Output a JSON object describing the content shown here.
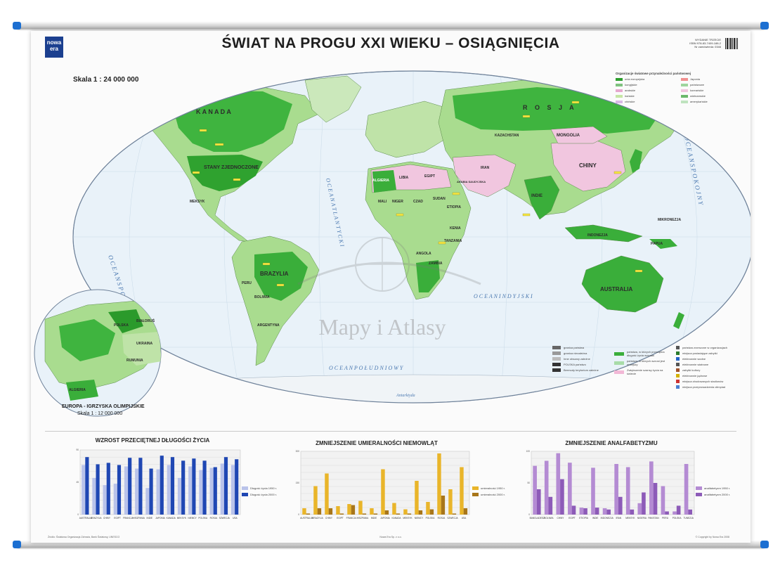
{
  "title": "ŚWIAT NA PROGU XXI WIEKU – OSIĄGNIĘCIA",
  "logo": {
    "line1": "nowa",
    "line2": "era"
  },
  "edition": {
    "line1": "WYDANIE TRZECIE",
    "line2": "ISBN 978-83-7409-188-2",
    "line3": "Nr zamówienia: 0346"
  },
  "map": {
    "scale_label": "Skala 1 : 24 000 000",
    "watermark": "Mapy i Atlasy",
    "ocean_labels": [
      "OCEAN ARKTYCZNY",
      "O C E A N   S P O K O J N Y",
      "O C E A N   A T L A N T Y C K I",
      "O C E A N   I N D Y J S K I",
      "O C E A N   P O Ł U D N I O W Y",
      "O C E A N   S P O K O J N Y",
      "Antarktyda"
    ],
    "countries": [
      {
        "name": "K A N A D A"
      },
      {
        "name": "STANY ZJEDNOCZONE"
      },
      {
        "name": "BRAZYLIA"
      },
      {
        "name": "R O S J A"
      },
      {
        "name": "CHINY"
      },
      {
        "name": "INDIE"
      },
      {
        "name": "AUSTRALIA"
      },
      {
        "name": "ALGIERIA"
      },
      {
        "name": "LIBIA"
      },
      {
        "name": "EGIPT"
      },
      {
        "name": "SUDAN"
      },
      {
        "name": "MALI"
      },
      {
        "name": "NIGER"
      },
      {
        "name": "CZAD"
      },
      {
        "name": "ETIOPIA"
      },
      {
        "name": "ANGOLA"
      },
      {
        "name": "ZAMBIA"
      },
      {
        "name": "KENIA"
      },
      {
        "name": "TANZANIA"
      },
      {
        "name": "MONGOLIA"
      },
      {
        "name": "IRAN"
      },
      {
        "name": "ARABIA SAUDYJSKA"
      },
      {
        "name": "KAZACHSTAN"
      },
      {
        "name": "PERU"
      },
      {
        "name": "BOLIWIA"
      },
      {
        "name": "ARGENTYNA"
      },
      {
        "name": "MEKSYK"
      },
      {
        "name": "INDONEZJA"
      },
      {
        "name": "PAPUA"
      },
      {
        "name": "MIKRONEZJA"
      }
    ]
  },
  "inset": {
    "caption": "EUROPA - IGRZYSKA OLIMPIJSKIE",
    "scale": "Skala 1 : 12 000 000",
    "labels": [
      "POLSKA",
      "BIAŁORUŚ",
      "UKRAINA",
      "ALGIERIA",
      "RUMUNIA"
    ]
  },
  "legend": {
    "heading": "Organizacje światowe przynależności państwowej",
    "items": [
      {
        "label": "unia europejska",
        "color": "#2e9e2e"
      },
      {
        "label": "Japonia",
        "color": "#f08f8f"
      },
      {
        "label": "kongijskie",
        "color": "#7fc27f"
      },
      {
        "label": "państwowe",
        "color": "#9ed69e"
      },
      {
        "label": "arabskie",
        "color": "#e7a8cf"
      },
      {
        "label": "koreańskie",
        "color": "#f1c6df"
      },
      {
        "label": "irańskie",
        "color": "#c6e6a4"
      },
      {
        "label": "wietnamskie",
        "color": "#6cb86c"
      },
      {
        "label": "chińskie",
        "color": "#d9b8e6"
      },
      {
        "label": "amerykańskie",
        "color": "#bfe3bf"
      }
    ]
  },
  "legend2": {
    "left": [
      {
        "label": "granica państwa",
        "color": "#666"
      },
      {
        "label": "granica niezależna",
        "color": "#999"
      },
      {
        "label": "Inne obszary zależne",
        "color": "#bbb"
      },
      {
        "label": "POLSKA  państwo",
        "color": "#333"
      },
      {
        "label": "Bermudy  terytorium zależne",
        "color": "#333"
      }
    ],
    "middle": [
      {
        "label": "państwa, w których przeciętna długość życia wzrosła",
        "color": "#3bae3b"
      },
      {
        "label": "państwa, w których wzrost jest mniejszy",
        "color": "#a8dca8"
      },
      {
        "label": "Zwiększenie szansy życia na świecie",
        "color": "#f2b8d6"
      }
    ],
    "right": [
      {
        "label": "państwa zrzeszone w organizacjach",
        "color": "#555"
      },
      {
        "label": "miejsca posiadające zabytki",
        "color": "#2b7b2b"
      },
      {
        "label": "elektrownie wodne",
        "color": "#2463c7"
      },
      {
        "label": "elektrownie wiatrowe",
        "color": "#555"
      },
      {
        "label": "zabytki kultury",
        "color": "#a0522d"
      },
      {
        "label": "elektrownie jądrowe",
        "color": "#d4b200"
      },
      {
        "label": "miejsca zbudowanych stadionów",
        "color": "#c33"
      },
      {
        "label": "miejsca przeprowadzenia olimpiad",
        "color": "#4a7fd0"
      }
    ]
  },
  "charts": [
    {
      "title": "WZROST PRZECIĘTNEJ DŁUGOŚCI ŻYCIA",
      "legend": [
        "Długość życia 1950 r.",
        "Długość życia 2000 r."
      ],
      "colors": [
        "#b9c3ea",
        "#1f47b3"
      ],
      "categories": [
        "AUSTRALIA",
        "BRAZYLIA",
        "CHINY",
        "EGIPT",
        "FRANCJA",
        "HISZPANIA",
        "INDIE",
        "JAPONIA",
        "KANADA",
        "MEKSYK",
        "NIEMCY",
        "POLSKA",
        "ROSJA",
        "SZWECJA",
        "USA"
      ]
    },
    {
      "title": "ZMNIEJSZENIE UMIERALNOŚCI NIEMOWLĄT",
      "legend": [
        "umieralność 1950 r.",
        "umieralność 2000 r."
      ],
      "colors": [
        "#e9b52a",
        "#a8761a"
      ],
      "categories": [
        "AUSTRALIA",
        "BRAZYLIA",
        "CHINY",
        "EGIPT",
        "FRANCJA",
        "HISZPANIA",
        "INDIE",
        "JAPONIA",
        "KANADA",
        "MEKSYK",
        "NIEMCY",
        "POLSKA",
        "ROSJA",
        "SZWECJA",
        "USA"
      ]
    },
    {
      "title": "ZMNIEJSZENIE ANALFABETYZMU",
      "legend": [
        "analfabetyzm 1950 r.",
        "analfabetyzm 2000 r."
      ],
      "colors": [
        "#b48bd3",
        "#8d5bb8"
      ],
      "categories": [
        "BANGLADESZ",
        "BOLIWIA",
        "CHINY",
        "EGIPT",
        "ETIOPIA",
        "INDIE",
        "INDONEZJA",
        "IRAN",
        "MEKSYK",
        "NIGERIA",
        "PAKISTAN",
        "PERU",
        "POLSKA",
        "TUNEZJA"
      ]
    }
  ],
  "chart_data": [
    {
      "type": "bar",
      "title": "WZROST PRZECIĘTNEJ DŁUGOŚCI ŻYCIA",
      "categories": [
        "AUSTRALIA",
        "BRAZYLIA",
        "CHINY",
        "EGIPT",
        "FRANCJA",
        "HISZPANIA",
        "INDIE",
        "JAPONIA",
        "KANADA",
        "MEKSYK",
        "NIEMCY",
        "POLSKA",
        "ROSJA",
        "SZWECJA",
        "USA"
      ],
      "series": [
        {
          "name": "Długość życia 1950 r.",
          "values": [
            69,
            51,
            41,
            43,
            67,
            64,
            37,
            63,
            69,
            51,
            67,
            62,
            65,
            71,
            69
          ]
        },
        {
          "name": "Długość życia 2000 r.",
          "values": [
            80,
            70,
            72,
            69,
            79,
            79,
            64,
            82,
            80,
            75,
            78,
            75,
            66,
            80,
            77
          ]
        }
      ],
      "ylim": [
        0,
        90
      ]
    },
    {
      "type": "bar",
      "title": "ZMNIEJSZENIE UMIERALNOŚCI NIEMOWLĄT",
      "categories": [
        "AUSTRALIA",
        "BRAZYLIA",
        "CHINY",
        "EGIPT",
        "FRANCJA",
        "HISZPANIA",
        "INDIE",
        "JAPONIA",
        "KANADA",
        "MEKSYK",
        "NIEMCY",
        "POLSKA",
        "ROSJA",
        "SZWECJA",
        "USA"
      ],
      "series": [
        {
          "name": "umieralność 1950 r.",
          "values": [
            30,
            135,
            195,
            40,
            50,
            65,
            30,
            215,
            55,
            25,
            160,
            60,
            290,
            120,
            225
          ]
        },
        {
          "name": "umieralność 2000 r.",
          "values": [
            5,
            30,
            30,
            5,
            45,
            5,
            5,
            20,
            5,
            5,
            20,
            25,
            90,
            5,
            30
          ]
        }
      ],
      "ylim": [
        0,
        300
      ]
    },
    {
      "type": "bar",
      "title": "ZMNIEJSZENIE ANALFABETYZMU",
      "categories": [
        "BANGLADESZ",
        "BOLIWIA",
        "CHINY",
        "EGIPT",
        "ETIOPIA",
        "INDIE",
        "INDONEZJA",
        "IRAN",
        "MEKSYK",
        "NIGERIA",
        "PAKISTAN",
        "PERU",
        "POLSKA",
        "TUNEZJA"
      ],
      "series": [
        {
          "name": "analfabetyzm 1950 r.",
          "values": [
            77,
            85,
            97,
            82,
            11,
            74,
            10,
            80,
            75,
            18,
            84,
            45,
            5,
            80
          ]
        },
        {
          "name": "analfabetyzm 2000 r.",
          "values": [
            40,
            28,
            56,
            14,
            10,
            11,
            8,
            28,
            8,
            35,
            50,
            5,
            14,
            8
          ]
        }
      ],
      "ylim": [
        0,
        100
      ]
    }
  ],
  "footer": {
    "left": "Źródło: Światowa Organizacja Zdrowia, Bank Światowy, UNESCO",
    "center": "Nowa Era Sp. z o.o.",
    "right": "© Copyright by Nowa Era 2008"
  }
}
